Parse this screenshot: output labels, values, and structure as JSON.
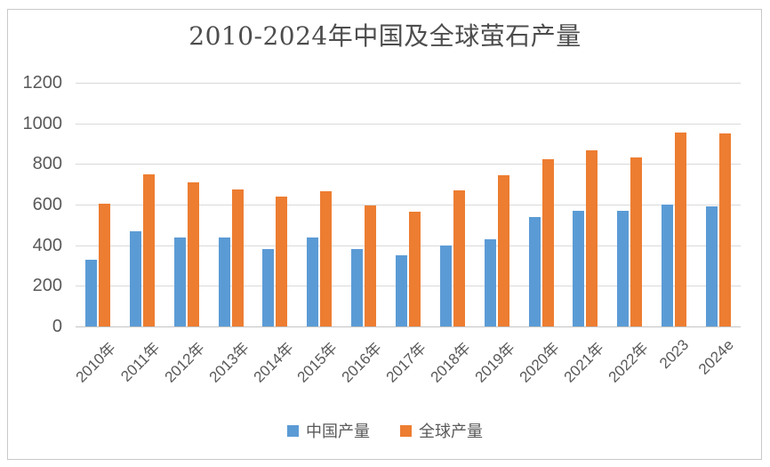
{
  "chart_data": {
    "type": "bar",
    "title": "2010-2024年中国及全球萤石产量",
    "categories": [
      "2010年",
      "2011年",
      "2012年",
      "2013年",
      "2014年",
      "2015年",
      "2016年",
      "2017年",
      "2018年",
      "2019年",
      "2020年",
      "2021年",
      "2022年",
      "2023",
      "2024e"
    ],
    "series": [
      {
        "name": "中国产量",
        "color": "#5B9BD5",
        "values": [
          330,
          470,
          440,
          440,
          380,
          440,
          380,
          350,
          400,
          430,
          540,
          570,
          570,
          600,
          590
        ]
      },
      {
        "name": "全球产量",
        "color": "#ED7D31",
        "values": [
          605,
          750,
          710,
          675,
          640,
          665,
          595,
          565,
          670,
          745,
          825,
          865,
          830,
          955,
          950
        ]
      }
    ],
    "xlabel": "",
    "ylabel": "",
    "ylim": [
      0,
      1200
    ],
    "yticks": [
      0,
      200,
      400,
      600,
      800,
      1000,
      1200
    ],
    "grid": true,
    "legend_position": "bottom"
  },
  "colors": {
    "series_china": "#5B9BD5",
    "series_global": "#ED7D31",
    "gridline": "#d9d9d9",
    "axis_line": "#c3c3c3",
    "tick_text": "#595959",
    "title_text": "#4d4d4d",
    "frame_border": "#c9c9c9",
    "background": "#ffffff"
  }
}
